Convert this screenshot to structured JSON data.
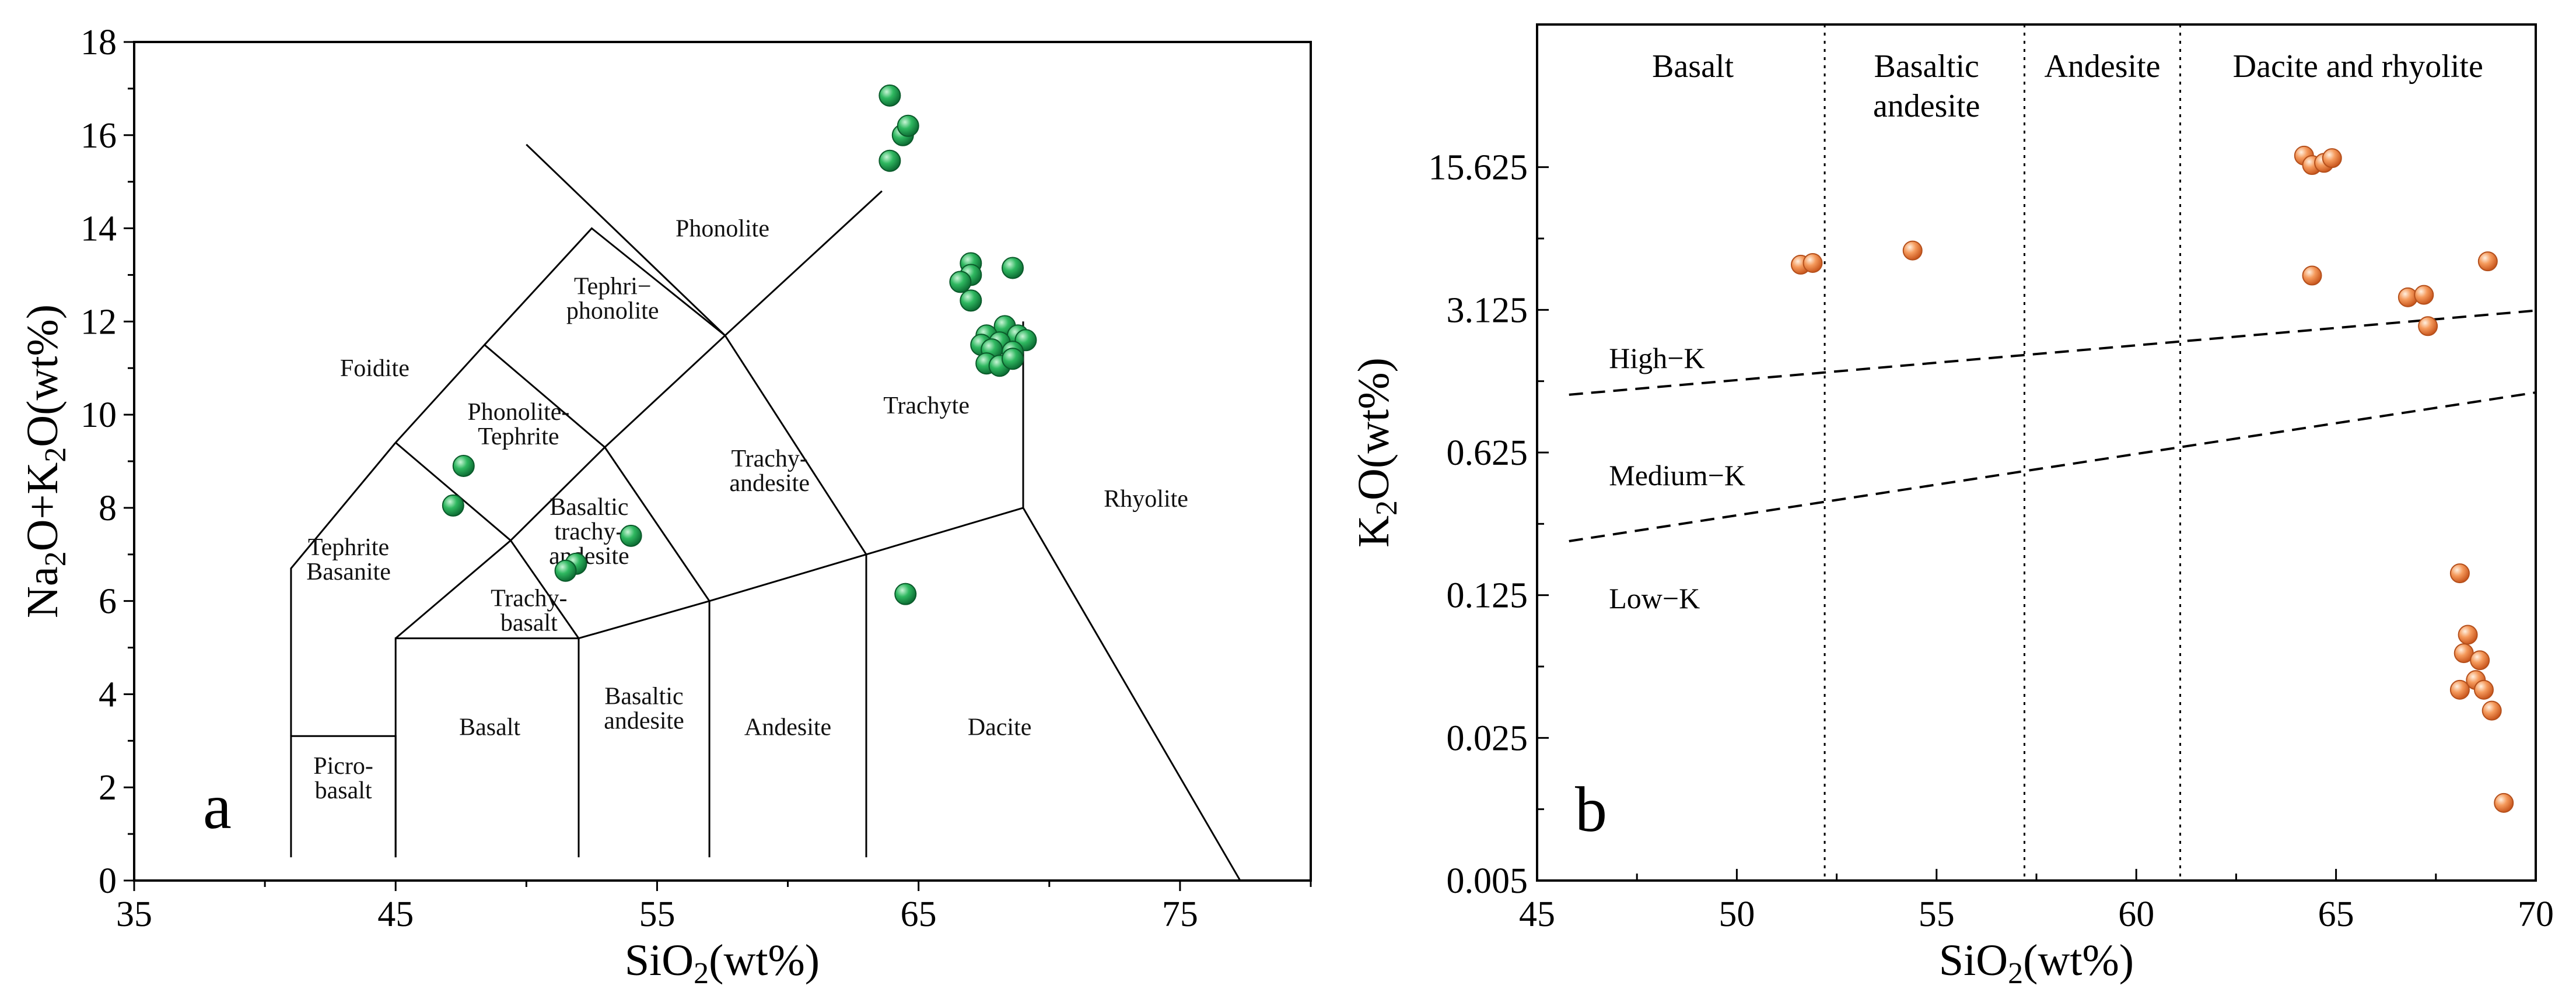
{
  "chart_data": [
    {
      "type": "scatter",
      "panel_label": "a",
      "title": "",
      "xlabel": {
        "pre": "SiO",
        "sub": "2",
        "post": "(wt%)"
      },
      "ylabel": {
        "p1": "Na",
        "s1": "2",
        "p2": "O+K",
        "s2": "2",
        "p3": "O(wt%)"
      },
      "xlim": [
        35,
        80
      ],
      "ylim": [
        0,
        18
      ],
      "x_ticks": [
        35,
        45,
        55,
        65,
        75
      ],
      "y_ticks": [
        0,
        2,
        4,
        6,
        8,
        10,
        12,
        14,
        16,
        18
      ],
      "grid": false,
      "series": [
        {
          "name": "Samples",
          "color": "#1fa64e",
          "points": [
            [
              63.9,
              16.85
            ],
            [
              64.4,
              16.0
            ],
            [
              64.6,
              16.2
            ],
            [
              63.9,
              15.45
            ],
            [
              67.0,
              13.25
            ],
            [
              67.0,
              13.0
            ],
            [
              68.6,
              13.15
            ],
            [
              66.6,
              12.85
            ],
            [
              67.0,
              12.45
            ],
            [
              68.3,
              11.9
            ],
            [
              67.6,
              11.7
            ],
            [
              68.8,
              11.7
            ],
            [
              67.4,
              11.5
            ],
            [
              68.1,
              11.55
            ],
            [
              69.1,
              11.6
            ],
            [
              67.8,
              11.4
            ],
            [
              68.6,
              11.35
            ],
            [
              67.6,
              11.1
            ],
            [
              68.1,
              11.05
            ],
            [
              68.6,
              11.2
            ],
            [
              47.6,
              8.9
            ],
            [
              47.2,
              8.05
            ],
            [
              54.0,
              7.4
            ],
            [
              51.9,
              6.8
            ],
            [
              51.5,
              6.65
            ],
            [
              64.5,
              6.15
            ]
          ]
        }
      ],
      "boundaries": [
        [
          [
            41,
            0.5
          ],
          [
            41,
            3.1
          ],
          [
            45,
            3.1
          ],
          [
            45,
            0.5
          ]
        ],
        [
          [
            41,
            3.1
          ],
          [
            41,
            6.7
          ],
          [
            45,
            9.4
          ]
        ],
        [
          [
            45,
            0.5
          ],
          [
            45,
            5.2
          ],
          [
            52,
            5.2
          ],
          [
            52,
            0.5
          ]
        ],
        [
          [
            45,
            5.2
          ],
          [
            49.4,
            7.3
          ],
          [
            52,
            5.2
          ]
        ],
        [
          [
            49.4,
            7.3
          ],
          [
            53,
            9.3
          ],
          [
            57,
            6.0
          ],
          [
            57,
            0.5
          ]
        ],
        [
          [
            52,
            5.2
          ],
          [
            57,
            6.0
          ],
          [
            63,
            7.0
          ],
          [
            63,
            0.5
          ]
        ],
        [
          [
            63,
            7.0
          ],
          [
            69,
            8.0
          ],
          [
            77.3,
            0.0
          ]
        ],
        [
          [
            69,
            8.0
          ],
          [
            69,
            12.0
          ]
        ],
        [
          [
            45,
            9.4
          ],
          [
            49.4,
            7.3
          ]
        ],
        [
          [
            45,
            9.4
          ],
          [
            48.4,
            11.5
          ],
          [
            53,
            9.3
          ]
        ],
        [
          [
            48.4,
            11.5
          ],
          [
            52.5,
            14.0
          ],
          [
            57.6,
            11.7
          ]
        ],
        [
          [
            53,
            9.3
          ],
          [
            57.6,
            11.7
          ]
        ],
        [
          [
            57.6,
            11.7
          ],
          [
            63,
            7.0
          ]
        ],
        [
          [
            50,
            15.8
          ],
          [
            57.6,
            11.7
          ]
        ],
        [
          [
            57.6,
            11.7
          ],
          [
            63.6,
            14.8
          ]
        ]
      ],
      "field_labels": [
        {
          "text": [
            "Phonolite"
          ],
          "x": 57.5,
          "y": 14.0
        },
        {
          "text": [
            "Foidite"
          ],
          "x": 44.2,
          "y": 11.0
        },
        {
          "text": [
            "Tephri−",
            "phonolite"
          ],
          "x": 53.3,
          "y": 12.5
        },
        {
          "text": [
            "Trachyte"
          ],
          "x": 65.3,
          "y": 10.2
        },
        {
          "text": [
            "Phonolite-",
            "Tephrite"
          ],
          "x": 49.7,
          "y": 9.8
        },
        {
          "text": [
            "Trachy-",
            "andesite"
          ],
          "x": 59.3,
          "y": 8.8
        },
        {
          "text": [
            "Rhyolite"
          ],
          "x": 73.7,
          "y": 8.2
        },
        {
          "text": [
            "Tephrite",
            "Basanite"
          ],
          "x": 43.2,
          "y": 6.9
        },
        {
          "text": [
            "Basaltic",
            "trachy-",
            "andesite"
          ],
          "x": 52.4,
          "y": 7.5
        },
        {
          "text": [
            "Trachy-",
            "basalt"
          ],
          "x": 50.1,
          "y": 5.8
        },
        {
          "text": [
            "Basalt"
          ],
          "x": 48.6,
          "y": 3.3
        },
        {
          "text": [
            "Basaltic",
            "andesite"
          ],
          "x": 54.5,
          "y": 3.7
        },
        {
          "text": [
            "Andesite"
          ],
          "x": 60.0,
          "y": 3.3
        },
        {
          "text": [
            "Dacite"
          ],
          "x": 68.1,
          "y": 3.3
        },
        {
          "text": [
            "Picro-",
            "basalt"
          ],
          "x": 43.0,
          "y": 2.2
        }
      ]
    },
    {
      "type": "scatter",
      "panel_label": "b",
      "title": "",
      "xlabel": {
        "pre": "SiO",
        "sub": "2",
        "post": "(wt%)"
      },
      "ylabel": {
        "p1": "K",
        "s1": "2",
        "p2": "O(wt%)"
      },
      "x_scale": "linear",
      "y_scale": "log",
      "xlim": [
        45,
        70
      ],
      "ylim": [
        0.005,
        78.125
      ],
      "x_ticks": [
        45,
        50,
        55,
        60,
        65,
        70
      ],
      "y_ticks": [
        0.005,
        0.025,
        0.125,
        0.625,
        3.125,
        15.625
      ],
      "y_tick_labels": [
        "0.005",
        "0.025",
        "0.125",
        "0.625",
        "3.125",
        "15.625"
      ],
      "grid": false,
      "series": [
        {
          "name": "Samples",
          "color": "#f08a4b",
          "points": [
            [
              51.6,
              5.2
            ],
            [
              51.9,
              5.3
            ],
            [
              54.4,
              6.1
            ],
            [
              64.2,
              17.8
            ],
            [
              64.4,
              16.0
            ],
            [
              64.7,
              16.4
            ],
            [
              64.9,
              17.3
            ],
            [
              64.4,
              4.6
            ],
            [
              66.8,
              3.6
            ],
            [
              67.2,
              3.7
            ],
            [
              67.3,
              2.6
            ],
            [
              68.8,
              5.4
            ],
            [
              68.1,
              0.16
            ],
            [
              68.3,
              0.08
            ],
            [
              68.2,
              0.065
            ],
            [
              68.6,
              0.06
            ],
            [
              68.5,
              0.048
            ],
            [
              68.1,
              0.043
            ],
            [
              68.7,
              0.043
            ],
            [
              68.9,
              0.034
            ],
            [
              69.2,
              0.012
            ]
          ]
        }
      ],
      "boundaries": [
        {
          "name": "High-K/Medium-K",
          "points": [
            [
              45.8,
              1.2
            ],
            [
              70,
              3.1
            ]
          ]
        },
        {
          "name": "Medium-K/Low-K",
          "points": [
            [
              45.8,
              0.23
            ],
            [
              70,
              1.23
            ]
          ]
        }
      ],
      "dividers_x": [
        52.2,
        57.2,
        61.1
      ],
      "region_labels": [
        {
          "text": [
            "Basalt"
          ],
          "x": 48.9
        },
        {
          "text": [
            "Basaltic",
            "andesite"
          ],
          "x": 54.75
        },
        {
          "text": [
            "Andesite"
          ],
          "x": 59.15
        },
        {
          "text": [
            "Dacite and rhyolite"
          ],
          "x": 65.55
        }
      ],
      "series_labels": [
        {
          "text": "High−K",
          "x": 46.8,
          "y": 1.8
        },
        {
          "text": "Medium−K",
          "x": 46.8,
          "y": 0.48
        },
        {
          "text": "Low−K",
          "x": 46.8,
          "y": 0.12
        }
      ]
    }
  ]
}
